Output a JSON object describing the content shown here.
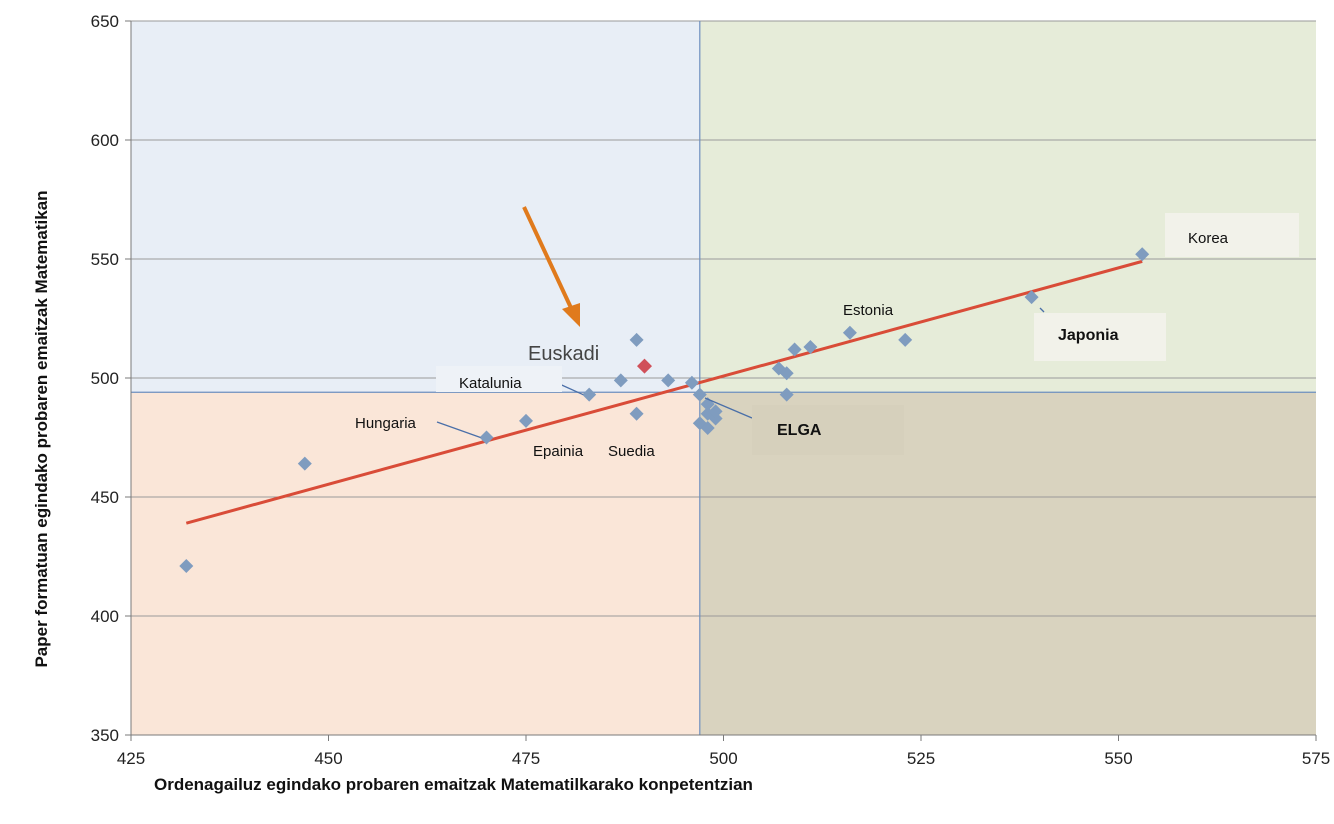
{
  "chart_data": {
    "type": "scatter",
    "title": "",
    "xlabel": "Ordenagailuz egindako probaren emaitzak  Matematilkarako konpetentzian",
    "ylabel": "Paper formatuan egindako probaren emaitzak  Matematikan",
    "xlim": [
      425,
      575
    ],
    "ylim": [
      350,
      650
    ],
    "x_ticks": [
      "425",
      "450",
      "475",
      "500",
      "525",
      "550",
      "575"
    ],
    "y_ticks": [
      "350",
      "400",
      "450",
      "500",
      "550",
      "600",
      "650"
    ],
    "grid": "horizontal",
    "reference_lines": {
      "x": 497,
      "y": 494
    },
    "colors": {
      "quadrant_top_left": "#e8eef6",
      "quadrant_top_right": "#e6ecd9",
      "quadrant_bottom_left": "#fae6d8",
      "quadrant_bottom_right": "#d9d3bf",
      "point": "#7f9cbf",
      "highlight_point": "#d0505a",
      "trendline": "#d94c38",
      "arrow": "#e07a1c"
    },
    "trendline": {
      "x": [
        432,
        553
      ],
      "y": [
        439,
        549
      ]
    },
    "highlight": {
      "x": 490,
      "y": 505
    },
    "series": [
      {
        "points": [
          {
            "x": 432,
            "y": 421
          },
          {
            "x": 447,
            "y": 464
          },
          {
            "x": 470,
            "y": 475
          },
          {
            "x": 475,
            "y": 482
          },
          {
            "x": 483,
            "y": 493
          },
          {
            "x": 487,
            "y": 499
          },
          {
            "x": 489,
            "y": 485
          },
          {
            "x": 489,
            "y": 516
          },
          {
            "x": 493,
            "y": 499
          },
          {
            "x": 496,
            "y": 498
          },
          {
            "x": 497,
            "y": 493
          },
          {
            "x": 497,
            "y": 481
          },
          {
            "x": 498,
            "y": 489
          },
          {
            "x": 498,
            "y": 485
          },
          {
            "x": 498,
            "y": 479
          },
          {
            "x": 499,
            "y": 483
          },
          {
            "x": 499,
            "y": 486
          },
          {
            "x": 507,
            "y": 504
          },
          {
            "x": 508,
            "y": 502
          },
          {
            "x": 508,
            "y": 493
          },
          {
            "x": 509,
            "y": 512
          },
          {
            "x": 511,
            "y": 513
          },
          {
            "x": 516,
            "y": 519
          },
          {
            "x": 523,
            "y": 516
          },
          {
            "x": 539,
            "y": 534
          },
          {
            "x": 553,
            "y": 552
          }
        ]
      }
    ],
    "annotations": {
      "korea": "Korea",
      "japonia": "Japonia",
      "estonia": "Estonia",
      "euskadi": "Euskadi",
      "katalunia": "Katalunia",
      "hungaria": "Hungaria",
      "epainia": "Epainia",
      "suedia": "Suedia",
      "elga": "ELGA"
    }
  }
}
